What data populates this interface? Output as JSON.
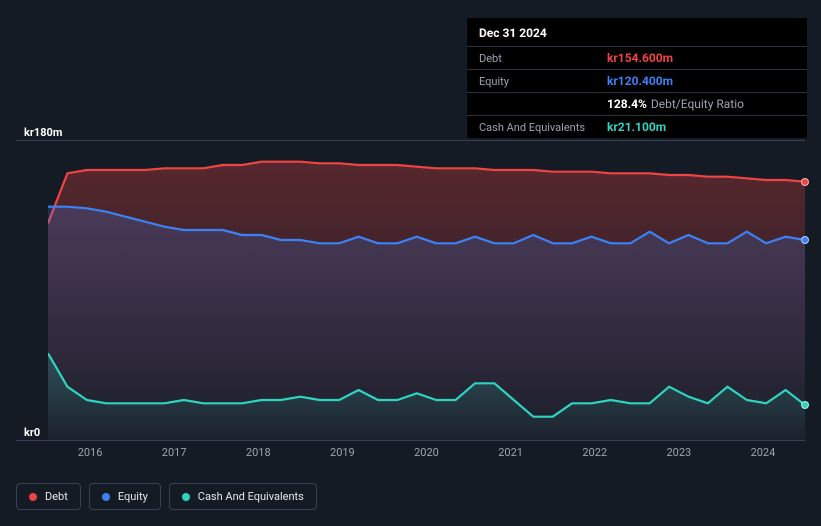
{
  "tooltip": {
    "date": "Dec 31 2024",
    "rows": [
      {
        "label": "Debt",
        "value": "kr154.600m",
        "color": "#ef4444"
      },
      {
        "label": "Equity",
        "value": "kr120.400m",
        "color": "#3b82f6"
      },
      {
        "label": "",
        "value": "128.4%",
        "secondary": "Debt/Equity Ratio",
        "color": "#ffffff"
      },
      {
        "label": "Cash And Equivalents",
        "value": "kr21.100m",
        "color": "#2dd4bf"
      }
    ]
  },
  "chart": {
    "type": "area",
    "ylim": [
      0,
      180
    ],
    "ymax_label": "kr180m",
    "ymin_label": "kr0",
    "xlabels": [
      "2016",
      "2017",
      "2018",
      "2019",
      "2020",
      "2021",
      "2022",
      "2023",
      "2024"
    ],
    "background": "#151b24",
    "grid_color": "#374151",
    "series": [
      {
        "name": "Debt",
        "color": "#ef4444",
        "fill_top": "rgba(239,68,68,0.30)",
        "fill_bottom": "rgba(239,68,68,0.02)",
        "values": [
          130,
          160,
          162,
          162,
          162,
          162,
          163,
          163,
          163,
          165,
          165,
          167,
          167,
          167,
          166,
          166,
          165,
          165,
          165,
          164,
          163,
          163,
          163,
          162,
          162,
          162,
          161,
          161,
          161,
          160,
          160,
          160,
          159,
          159,
          158,
          158,
          157,
          156,
          156,
          155
        ]
      },
      {
        "name": "Equity",
        "color": "#3b82f6",
        "fill_top": "rgba(59,130,246,0.22)",
        "fill_bottom": "rgba(59,130,246,0.02)",
        "values": [
          140,
          140,
          139,
          137,
          134,
          131,
          128,
          126,
          126,
          126,
          123,
          123,
          120,
          120,
          118,
          118,
          122,
          118,
          118,
          122,
          118,
          118,
          122,
          118,
          118,
          123,
          118,
          118,
          122,
          118,
          118,
          125,
          118,
          123,
          118,
          118,
          125,
          118,
          122,
          120
        ]
      },
      {
        "name": "Cash And Equivalents",
        "color": "#2dd4bf",
        "fill_top": "rgba(45,212,191,0.22)",
        "fill_bottom": "rgba(45,212,191,0.02)",
        "values": [
          52,
          32,
          24,
          22,
          22,
          22,
          22,
          24,
          22,
          22,
          22,
          24,
          24,
          26,
          24,
          24,
          30,
          24,
          24,
          28,
          24,
          24,
          34,
          34,
          24,
          14,
          14,
          22,
          22,
          24,
          22,
          22,
          32,
          26,
          22,
          32,
          24,
          22,
          30,
          21
        ]
      }
    ],
    "legend": [
      {
        "label": "Debt",
        "color": "#ef4444"
      },
      {
        "label": "Equity",
        "color": "#3b82f6"
      },
      {
        "label": "Cash And Equivalents",
        "color": "#2dd4bf"
      }
    ]
  }
}
